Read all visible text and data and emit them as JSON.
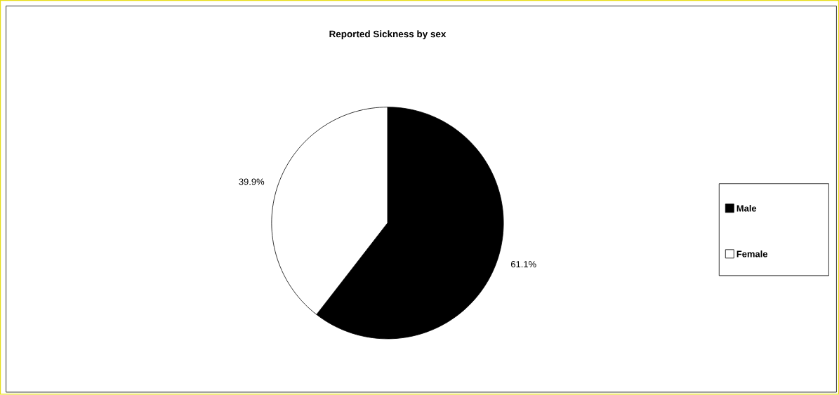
{
  "chart_data": {
    "type": "pie",
    "title": "Reported Sickness by sex",
    "categories": [
      "Male",
      "Female"
    ],
    "values": [
      61.1,
      39.9
    ],
    "colors": [
      "#000000",
      "#ffffff"
    ],
    "value_labels": [
      "61.1%",
      "39.9%"
    ],
    "legend": "right"
  }
}
